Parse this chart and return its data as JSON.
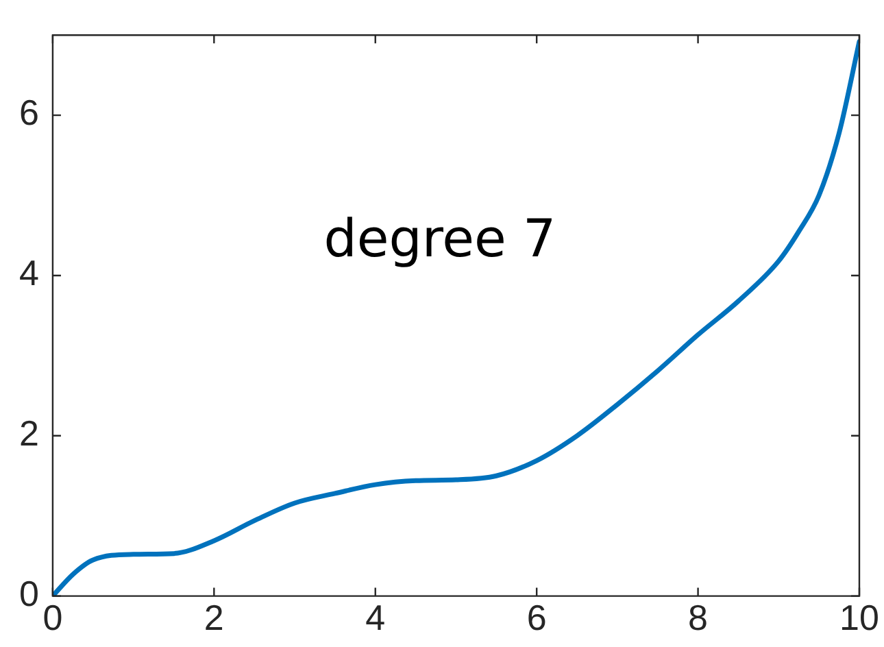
{
  "chart_data": {
    "type": "line",
    "annotations": [
      "degree 7"
    ],
    "series": [
      {
        "color": "#0072bd",
        "x": [
          0,
          0.25,
          0.5,
          1,
          1.5,
          2,
          2.5,
          3,
          3.5,
          4,
          4.5,
          5,
          5.5,
          6,
          6.5,
          7,
          7.5,
          8,
          8.5,
          9,
          9.25,
          9.5,
          9.75,
          10
        ],
        "values": [
          0,
          0.27,
          0.45,
          0.52,
          0.53,
          0.69,
          0.94,
          1.16,
          1.28,
          1.39,
          1.44,
          1.45,
          1.5,
          1.69,
          2.0,
          2.39,
          2.81,
          3.26,
          3.68,
          4.18,
          4.55,
          5.0,
          5.78,
          6.92
        ]
      }
    ],
    "xlim": [
      0,
      10
    ],
    "xticks": [
      0,
      2,
      4,
      6,
      8,
      10
    ],
    "ylim": [
      0,
      7
    ],
    "yticks": [
      0,
      2,
      4,
      6
    ],
    "grid": false,
    "legend": false,
    "marker": "none",
    "line_style": "solid"
  }
}
